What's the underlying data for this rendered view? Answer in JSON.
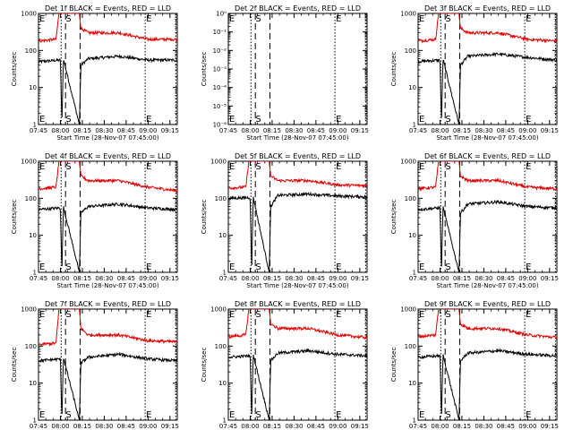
{
  "figure": {
    "xlabel": "Start Time (28-Nov-07 07:45:00)",
    "ylabel": "Counts/sec",
    "x_tick_labels": [
      "07:45",
      "08:00",
      "08:15",
      "08:30",
      "08:45",
      "09:00",
      "09:15"
    ],
    "colors": {
      "events": "#000000",
      "lld": "#e00000",
      "axes": "#000000"
    }
  },
  "chart_data": [
    {
      "type": "line",
      "title": "Det 1f BLACK = Events, RED = LLD",
      "y_scale": "log",
      "ylim": [
        1,
        1000
      ],
      "y_tick_labels": [
        "1",
        "10",
        "100",
        "1000"
      ],
      "xlim": [
        0,
        95
      ],
      "markers": [
        {
          "label": "E",
          "x": 0
        },
        {
          "label": "S",
          "x": 18
        },
        {
          "label": "E",
          "x": 73
        }
      ],
      "series": [
        {
          "name": "Events",
          "color": "#000000",
          "profile": [
            [
              0,
              50
            ],
            [
              15,
              55
            ],
            [
              16,
              1
            ],
            [
              17,
              60
            ],
            [
              28,
              1
            ],
            [
              29,
              40
            ],
            [
              34,
              60
            ],
            [
              55,
              70
            ],
            [
              75,
              55
            ],
            [
              95,
              55
            ]
          ]
        },
        {
          "name": "LLD",
          "color": "#e00000",
          "profile": [
            [
              0,
              180
            ],
            [
              12,
              200
            ],
            [
              14,
              1000
            ],
            [
              28,
              1000
            ],
            [
              29,
              400
            ],
            [
              34,
              300
            ],
            [
              55,
              300
            ],
            [
              75,
              200
            ],
            [
              95,
              200
            ]
          ]
        }
      ]
    },
    {
      "type": "line",
      "title": "Det 2f BLACK = Events, RED = LLD",
      "y_scale": "log",
      "ylim": [
        1e-06,
        1
      ],
      "y_tick_labels": [
        "10⁻⁶",
        "10⁻⁵",
        "10⁻⁴",
        "10⁻³",
        "10⁻²",
        "10⁻¹",
        "10⁰"
      ],
      "xlim": [
        0,
        95
      ],
      "markers": [
        {
          "label": "E",
          "x": 0
        },
        {
          "label": "S",
          "x": 18
        },
        {
          "label": "E",
          "x": 73
        }
      ],
      "series": []
    },
    {
      "type": "line",
      "title": "Det 3f BLACK = Events, RED = LLD",
      "y_scale": "log",
      "ylim": [
        1,
        1000
      ],
      "y_tick_labels": [
        "1",
        "10",
        "100",
        "1000"
      ],
      "xlim": [
        0,
        95
      ],
      "markers": [
        {
          "label": "E",
          "x": 0
        },
        {
          "label": "S",
          "x": 18
        },
        {
          "label": "E",
          "x": 73
        }
      ],
      "series": [
        {
          "name": "Events",
          "color": "#000000",
          "profile": [
            [
              0,
              50
            ],
            [
              15,
              55
            ],
            [
              16,
              1
            ],
            [
              17,
              60
            ],
            [
              28,
              1
            ],
            [
              29,
              40
            ],
            [
              34,
              70
            ],
            [
              55,
              80
            ],
            [
              75,
              65
            ],
            [
              95,
              55
            ]
          ]
        },
        {
          "name": "LLD",
          "color": "#e00000",
          "profile": [
            [
              0,
              180
            ],
            [
              12,
              200
            ],
            [
              14,
              1000
            ],
            [
              28,
              1000
            ],
            [
              29,
              400
            ],
            [
              34,
              300
            ],
            [
              55,
              300
            ],
            [
              75,
              200
            ],
            [
              95,
              180
            ]
          ]
        }
      ]
    },
    {
      "type": "line",
      "title": "Det 4f BLACK = Events, RED = LLD",
      "y_scale": "log",
      "ylim": [
        1,
        1000
      ],
      "y_tick_labels": [
        "1",
        "10",
        "100",
        "1000"
      ],
      "xlim": [
        0,
        95
      ],
      "markers": [
        {
          "label": "E",
          "x": 0
        },
        {
          "label": "S",
          "x": 18
        },
        {
          "label": "E",
          "x": 73
        }
      ],
      "series": [
        {
          "name": "Events",
          "color": "#000000",
          "profile": [
            [
              0,
              50
            ],
            [
              15,
              55
            ],
            [
              16,
              1
            ],
            [
              17,
              60
            ],
            [
              28,
              1
            ],
            [
              29,
              40
            ],
            [
              34,
              60
            ],
            [
              55,
              70
            ],
            [
              75,
              55
            ],
            [
              95,
              50
            ]
          ]
        },
        {
          "name": "LLD",
          "color": "#e00000",
          "profile": [
            [
              0,
              180
            ],
            [
              12,
              200
            ],
            [
              14,
              1000
            ],
            [
              28,
              1000
            ],
            [
              29,
              400
            ],
            [
              34,
              300
            ],
            [
              55,
              300
            ],
            [
              75,
              200
            ],
            [
              95,
              160
            ]
          ]
        }
      ]
    },
    {
      "type": "line",
      "title": "Det 5f BLACK = Events, RED = LLD",
      "y_scale": "log",
      "ylim": [
        1,
        1000
      ],
      "y_tick_labels": [
        "1",
        "10",
        "100",
        "1000"
      ],
      "xlim": [
        0,
        95
      ],
      "markers": [
        {
          "label": "E",
          "x": 0
        },
        {
          "label": "S",
          "x": 18
        },
        {
          "label": "E",
          "x": 73
        }
      ],
      "series": [
        {
          "name": "Events",
          "color": "#000000",
          "profile": [
            [
              0,
              100
            ],
            [
              15,
              105
            ],
            [
              16,
              1
            ],
            [
              17,
              110
            ],
            [
              28,
              1
            ],
            [
              29,
              60
            ],
            [
              34,
              120
            ],
            [
              55,
              130
            ],
            [
              75,
              115
            ],
            [
              95,
              110
            ]
          ]
        },
        {
          "name": "LLD",
          "color": "#e00000",
          "profile": [
            [
              0,
              190
            ],
            [
              12,
              200
            ],
            [
              14,
              1000
            ],
            [
              28,
              1000
            ],
            [
              29,
              400
            ],
            [
              34,
              300
            ],
            [
              55,
              300
            ],
            [
              75,
              230
            ],
            [
              95,
              220
            ]
          ]
        }
      ]
    },
    {
      "type": "line",
      "title": "Det 6f BLACK = Events, RED = LLD",
      "y_scale": "log",
      "ylim": [
        1,
        1000
      ],
      "y_tick_labels": [
        "1",
        "10",
        "100",
        "1000"
      ],
      "xlim": [
        0,
        95
      ],
      "markers": [
        {
          "label": "E",
          "x": 0
        },
        {
          "label": "S",
          "x": 18
        },
        {
          "label": "E",
          "x": 73
        }
      ],
      "series": [
        {
          "name": "Events",
          "color": "#000000",
          "profile": [
            [
              0,
              50
            ],
            [
              15,
              55
            ],
            [
              16,
              1
            ],
            [
              17,
              60
            ],
            [
              28,
              1
            ],
            [
              29,
              40
            ],
            [
              34,
              70
            ],
            [
              55,
              80
            ],
            [
              75,
              60
            ],
            [
              95,
              55
            ]
          ]
        },
        {
          "name": "LLD",
          "color": "#e00000",
          "profile": [
            [
              0,
              180
            ],
            [
              12,
              200
            ],
            [
              14,
              1000
            ],
            [
              28,
              1000
            ],
            [
              29,
              400
            ],
            [
              34,
              300
            ],
            [
              55,
              300
            ],
            [
              75,
              200
            ],
            [
              95,
              180
            ]
          ]
        }
      ]
    },
    {
      "type": "line",
      "title": "Det 7f BLACK = Events, RED = LLD",
      "y_scale": "log",
      "ylim": [
        1,
        1000
      ],
      "y_tick_labels": [
        "1",
        "10",
        "100",
        "1000"
      ],
      "xlim": [
        0,
        95
      ],
      "markers": [
        {
          "label": "E",
          "x": 0
        },
        {
          "label": "S",
          "x": 18
        },
        {
          "label": "E",
          "x": 73
        }
      ],
      "series": [
        {
          "name": "Events",
          "color": "#000000",
          "profile": [
            [
              0,
              40
            ],
            [
              15,
              45
            ],
            [
              16,
              1
            ],
            [
              17,
              50
            ],
            [
              28,
              1
            ],
            [
              29,
              35
            ],
            [
              34,
              50
            ],
            [
              55,
              60
            ],
            [
              75,
              45
            ],
            [
              95,
              40
            ]
          ]
        },
        {
          "name": "LLD",
          "color": "#e00000",
          "profile": [
            [
              0,
              110
            ],
            [
              12,
              120
            ],
            [
              14,
              1000
            ],
            [
              28,
              1000
            ],
            [
              29,
              300
            ],
            [
              34,
              200
            ],
            [
              55,
              200
            ],
            [
              75,
              140
            ],
            [
              95,
              130
            ]
          ]
        }
      ]
    },
    {
      "type": "line",
      "title": "Det 8f BLACK = Events, RED = LLD",
      "y_scale": "log",
      "ylim": [
        1,
        1000
      ],
      "y_tick_labels": [
        "1",
        "10",
        "100",
        "1000"
      ],
      "xlim": [
        0,
        95
      ],
      "markers": [
        {
          "label": "E",
          "x": 0
        },
        {
          "label": "S",
          "x": 18
        },
        {
          "label": "E",
          "x": 73
        }
      ],
      "series": [
        {
          "name": "Events",
          "color": "#000000",
          "profile": [
            [
              0,
              50
            ],
            [
              15,
              55
            ],
            [
              16,
              1
            ],
            [
              17,
              60
            ],
            [
              28,
              1
            ],
            [
              29,
              40
            ],
            [
              34,
              65
            ],
            [
              55,
              75
            ],
            [
              75,
              60
            ],
            [
              95,
              55
            ]
          ]
        },
        {
          "name": "LLD",
          "color": "#e00000",
          "profile": [
            [
              0,
              180
            ],
            [
              12,
              200
            ],
            [
              14,
              1000
            ],
            [
              28,
              1000
            ],
            [
              29,
              400
            ],
            [
              34,
              300
            ],
            [
              55,
              300
            ],
            [
              75,
              200
            ],
            [
              95,
              170
            ]
          ]
        }
      ]
    },
    {
      "type": "line",
      "title": "Det 9f BLACK = Events, RED = LLD",
      "y_scale": "log",
      "ylim": [
        1,
        1000
      ],
      "y_tick_labels": [
        "1",
        "10",
        "100",
        "1000"
      ],
      "xlim": [
        0,
        95
      ],
      "markers": [
        {
          "label": "E",
          "x": 0
        },
        {
          "label": "S",
          "x": 18
        },
        {
          "label": "E",
          "x": 73
        }
      ],
      "series": [
        {
          "name": "Events",
          "color": "#000000",
          "profile": [
            [
              0,
              50
            ],
            [
              15,
              55
            ],
            [
              16,
              1
            ],
            [
              17,
              60
            ],
            [
              28,
              1
            ],
            [
              29,
              40
            ],
            [
              34,
              65
            ],
            [
              55,
              75
            ],
            [
              75,
              60
            ],
            [
              95,
              55
            ]
          ]
        },
        {
          "name": "LLD",
          "color": "#e00000",
          "profile": [
            [
              0,
              180
            ],
            [
              12,
              200
            ],
            [
              14,
              1000
            ],
            [
              28,
              1000
            ],
            [
              29,
              400
            ],
            [
              34,
              300
            ],
            [
              55,
              300
            ],
            [
              75,
              200
            ],
            [
              95,
              170
            ]
          ]
        }
      ]
    }
  ]
}
